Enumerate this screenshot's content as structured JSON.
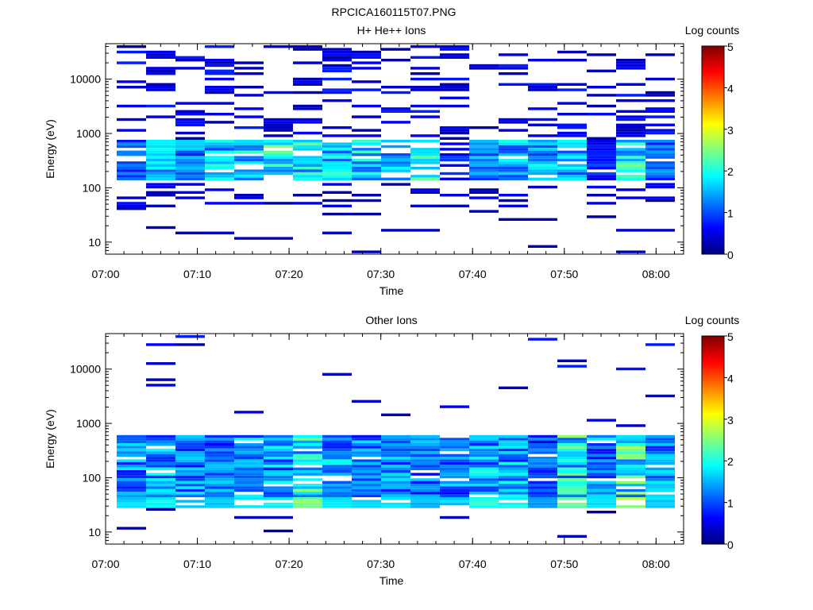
{
  "figure": {
    "title": "RPCICA160115T07.PNG"
  },
  "chart_data": [
    {
      "type": "heatmap",
      "title": "H+ He++ Ions",
      "xlabel": "Time",
      "ylabel": "Energy (eV)",
      "y_scale": "log",
      "x_range": [
        "07:00",
        "08:03"
      ],
      "y_range": [
        6,
        45000
      ],
      "x_ticks": [
        "07:00",
        "07:10",
        "07:20",
        "07:30",
        "07:40",
        "07:50",
        "08:00"
      ],
      "y_ticks": [
        "10",
        "100",
        "1000",
        "10000"
      ],
      "colorbar": {
        "label": "Log counts",
        "min": 0,
        "max": 5,
        "ticks": [
          "0",
          "1",
          "2",
          "3",
          "4",
          "5"
        ]
      },
      "data_description": "Sparse high-energy counts (log counts 0-1) above 1 keV; dense band 150-800 eV with peak log counts ~2.6 around 07:18-07:35 and 07:57",
      "band_peak_by_column": [
        1.4,
        2.0,
        1.7,
        2.1,
        2.3,
        2.6,
        2.4,
        2.3,
        2.2,
        2.1,
        2.5,
        1.0,
        1.7,
        2.0,
        2.0,
        2.0,
        1.0,
        2.6,
        1.5
      ]
    },
    {
      "type": "heatmap",
      "title": "Other Ions",
      "xlabel": "Time",
      "ylabel": "Energy (eV)",
      "y_scale": "log",
      "x_range": [
        "07:00",
        "08:03"
      ],
      "y_range": [
        6,
        45000
      ],
      "x_ticks": [
        "07:00",
        "07:10",
        "07:20",
        "07:30",
        "07:40",
        "07:50",
        "08:00"
      ],
      "y_ticks": [
        "10",
        "100",
        "1000",
        "10000"
      ],
      "colorbar": {
        "label": "Log counts",
        "min": 0,
        "max": 5,
        "ticks": [
          "0",
          "1",
          "2",
          "3",
          "4",
          "5"
        ]
      },
      "data_description": "Broad band 30-600 eV with log counts 1-2.8; low-energy line near 35 eV reaching ~2.8; sparse points up to ~30 keV",
      "band_peak_by_column": [
        1.8,
        2.0,
        1.8,
        1.7,
        1.9,
        2.0,
        2.7,
        2.0,
        1.8,
        2.0,
        1.7,
        1.8,
        2.2,
        2.0,
        1.5,
        2.6,
        1.8,
        2.8,
        1.8
      ]
    }
  ]
}
